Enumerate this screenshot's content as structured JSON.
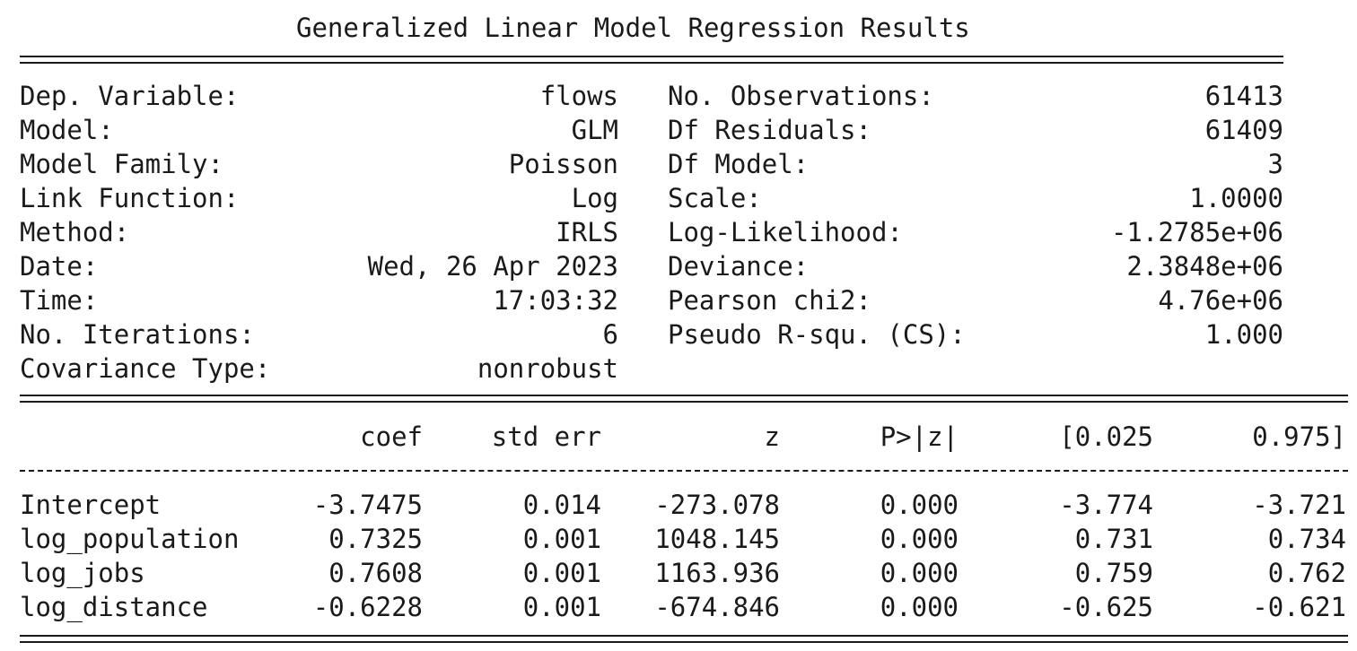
{
  "title": "Generalized Linear Model Regression Results",
  "summary": {
    "left": [
      {
        "label": "Dep. Variable:",
        "value": "flows"
      },
      {
        "label": "Model:",
        "value": "GLM"
      },
      {
        "label": "Model Family:",
        "value": "Poisson"
      },
      {
        "label": "Link Function:",
        "value": "Log"
      },
      {
        "label": "Method:",
        "value": "IRLS"
      },
      {
        "label": "Date:",
        "value": "Wed, 26 Apr 2023"
      },
      {
        "label": "Time:",
        "value": "17:03:32"
      },
      {
        "label": "No. Iterations:",
        "value": "6"
      },
      {
        "label": "Covariance Type:",
        "value": "nonrobust"
      }
    ],
    "right": [
      {
        "label": "No. Observations:",
        "value": "61413"
      },
      {
        "label": "Df Residuals:",
        "value": "61409"
      },
      {
        "label": "Df Model:",
        "value": "3"
      },
      {
        "label": "Scale:",
        "value": "1.0000"
      },
      {
        "label": "Log-Likelihood:",
        "value": "-1.2785e+06"
      },
      {
        "label": "Deviance:",
        "value": "2.3848e+06"
      },
      {
        "label": "Pearson chi2:",
        "value": "4.76e+06"
      },
      {
        "label": "Pseudo R-squ. (CS):",
        "value": "1.000"
      }
    ]
  },
  "coef_table": {
    "headers": [
      "coef",
      "std err",
      "z",
      "P>|z|",
      "[0.025",
      "0.975]"
    ],
    "rows": [
      {
        "name": "Intercept",
        "cells": [
          "-3.7475",
          "0.014",
          "-273.078",
          "0.000",
          "-3.774",
          "-3.721"
        ]
      },
      {
        "name": "log_population",
        "cells": [
          "0.7325",
          "0.001",
          "1048.145",
          "0.000",
          "0.731",
          "0.734"
        ]
      },
      {
        "name": "log_jobs",
        "cells": [
          "0.7608",
          "0.001",
          "1163.936",
          "0.000",
          "0.759",
          "0.762"
        ]
      },
      {
        "name": "log_distance",
        "cells": [
          "-0.6228",
          "0.001",
          "-674.846",
          "0.000",
          "-0.625",
          "-0.621"
        ]
      }
    ]
  }
}
